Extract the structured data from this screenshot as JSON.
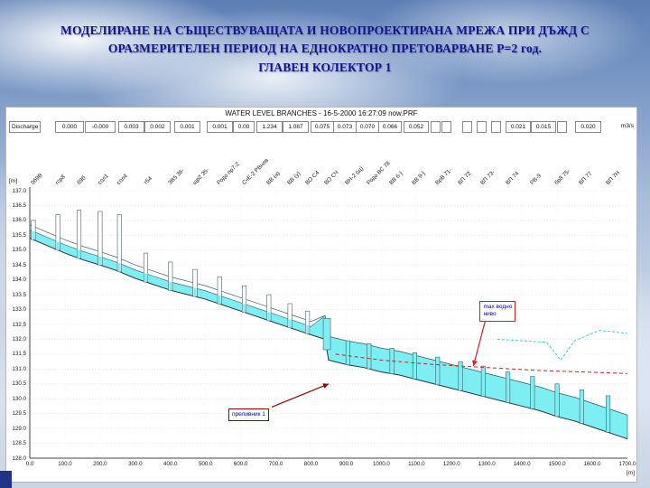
{
  "slide": {
    "title": {
      "line1": "МОДЕЛИРАНЕ НА СЪЩЕСТВУВАЩАТА И НОВОПРОЕКТИРАНА МРЕЖА ПРИ ДЪЖД С",
      "line2": "ОРАЗМЕРИТЕЛЕН ПЕРИОД НА ЕДНОКРАТНО ПРЕТОВАРВАНЕ Р=2 год.",
      "line3": "ГЛАВЕН КОЛЕКТОР 1"
    },
    "title_color": "#14148c"
  },
  "chart_data": {
    "type": "area",
    "title": "WATER LEVEL  BRANCHES - 16-5-2000 16:27:09 now.PRF",
    "x_unit": "[m]",
    "y_unit": "[m]",
    "xlim": [
      0,
      1700
    ],
    "ylim": [
      128.0,
      137.0
    ],
    "x_tick_step": 100,
    "y_tick_step": 0.5,
    "colors": {
      "water": "#7deef2",
      "outline": "#2b5f78",
      "grid": "#d9d9d9",
      "max_line": "#cc2222",
      "ground_line": "#2ec8d8"
    },
    "invert_profile": [
      [
        0,
        135.4
      ],
      [
        50,
        135.15
      ],
      [
        100,
        134.9
      ],
      [
        150,
        134.68
      ],
      [
        200,
        134.5
      ],
      [
        250,
        134.3
      ],
      [
        300,
        134.05
      ],
      [
        350,
        133.85
      ],
      [
        400,
        133.65
      ],
      [
        450,
        133.5
      ],
      [
        500,
        133.35
      ],
      [
        550,
        133.15
      ],
      [
        600,
        132.95
      ],
      [
        650,
        132.75
      ],
      [
        700,
        132.55
      ],
      [
        750,
        132.35
      ],
      [
        800,
        132.15
      ],
      [
        840,
        132.0
      ],
      [
        850,
        131.3
      ],
      [
        900,
        131.15
      ],
      [
        950,
        131.05
      ],
      [
        1000,
        130.9
      ],
      [
        1050,
        130.8
      ],
      [
        1100,
        130.65
      ],
      [
        1150,
        130.5
      ],
      [
        1200,
        130.35
      ],
      [
        1250,
        130.2
      ],
      [
        1300,
        130.05
      ],
      [
        1350,
        129.9
      ],
      [
        1400,
        129.75
      ],
      [
        1450,
        129.6
      ],
      [
        1500,
        129.4
      ],
      [
        1550,
        129.25
      ],
      [
        1600,
        129.05
      ],
      [
        1650,
        128.85
      ],
      [
        1700,
        128.65
      ]
    ],
    "pipe": {
      "break_x": 840,
      "upstream_diameter": 0.45,
      "downstream_diameter": 0.8
    },
    "water": {
      "upstream_depth": 0.28,
      "downstream_depth": 0.8
    },
    "max_level_line": [
      [
        870,
        131.5
      ],
      [
        1000,
        131.3
      ],
      [
        1150,
        131.15
      ],
      [
        1300,
        131.05
      ],
      [
        1450,
        130.95
      ],
      [
        1700,
        130.85
      ]
    ],
    "ground_line": [
      [
        1330,
        132.0
      ],
      [
        1400,
        131.95
      ],
      [
        1470,
        131.9
      ],
      [
        1510,
        131.3
      ],
      [
        1550,
        131.95
      ],
      [
        1620,
        132.3
      ],
      [
        1700,
        132.2
      ]
    ],
    "nodes": [
      {
        "x": 10,
        "top": 136.0,
        "label": "0б9В"
      },
      {
        "x": 80,
        "top": 136.2,
        "label": "гср8"
      },
      {
        "x": 140,
        "top": 136.35,
        "label": "б9б"
      },
      {
        "x": 200,
        "top": 136.3,
        "label": "сол1"
      },
      {
        "x": 255,
        "top": 136.2,
        "label": "сол4"
      },
      {
        "x": 330,
        "top": 134.9,
        "label": "т54"
      },
      {
        "x": 400,
        "top": 134.6,
        "label": "ЗВ5 36-"
      },
      {
        "x": 470,
        "top": 134.35,
        "label": "щр2 35-"
      },
      {
        "x": 540,
        "top": 134.1,
        "label": "Родо пр7-2"
      },
      {
        "x": 610,
        "top": 133.8,
        "label": "СчЕ-2 РВнов"
      },
      {
        "x": 680,
        "top": 133.5,
        "label": "ВВ (а)"
      },
      {
        "x": 740,
        "top": 133.2,
        "label": "ВВ (у)"
      },
      {
        "x": 790,
        "top": 132.95,
        "label": "ВО С4"
      },
      {
        "x": 845,
        "top": 132.7,
        "label": "ВО СЧ",
        "weir": true
      },
      {
        "x": 905,
        "top": 131.95,
        "label": "ВН-2 (щ)"
      },
      {
        "x": 965,
        "top": 131.85,
        "label": "Родо ВС 78"
      },
      {
        "x": 1030,
        "top": 131.7,
        "label": "ВВ 6-}"
      },
      {
        "x": 1095,
        "top": 131.55,
        "label": "ВВ 9-}"
      },
      {
        "x": 1160,
        "top": 131.4,
        "label": "ВрВ 71-"
      },
      {
        "x": 1225,
        "top": 131.25,
        "label": "ВП 72"
      },
      {
        "x": 1290,
        "top": 131.1,
        "label": "ВП 73-"
      },
      {
        "x": 1360,
        "top": 130.9,
        "label": "ВП 74"
      },
      {
        "x": 1430,
        "top": 130.75,
        "label": "РВ-9"
      },
      {
        "x": 1500,
        "top": 130.5,
        "label": "бр8 75-"
      },
      {
        "x": 1570,
        "top": 130.3,
        "label": "ВП 77"
      },
      {
        "x": 1645,
        "top": 130.1,
        "label": "ВП 7Н"
      }
    ],
    "discharge_row": {
      "label": "Discharge",
      "unit": "m3/s",
      "cells": [
        {
          "t": "0.000",
          "x": 54,
          "w": 30
        },
        {
          "t": "-0.000",
          "x": 87,
          "w": 32
        },
        {
          "t": "0.003",
          "x": 124,
          "w": 27
        },
        {
          "t": "0.002",
          "x": 153,
          "w": 27
        },
        {
          "t": "0.001",
          "x": 186,
          "w": 27
        },
        {
          "t": "0.001",
          "x": 222,
          "w": 27
        },
        {
          "t": "0.00",
          "x": 251,
          "w": 22
        },
        {
          "t": "1.234",
          "x": 277,
          "w": 27
        },
        {
          "t": "1.087",
          "x": 306,
          "w": 27
        },
        {
          "t": "0.075",
          "x": 337,
          "w": 24
        },
        {
          "t": "0.073",
          "x": 362,
          "w": 24
        },
        {
          "t": "0.070",
          "x": 387,
          "w": 24
        },
        {
          "t": "0.066",
          "x": 412,
          "w": 24
        },
        {
          "t": "0.052",
          "x": 440,
          "w": 26
        },
        {
          "t": "",
          "x": 470,
          "w": 9
        },
        {
          "t": "",
          "x": 482,
          "w": 9
        },
        {
          "t": "",
          "x": 505,
          "w": 9
        },
        {
          "t": "",
          "x": 521,
          "w": 9
        },
        {
          "t": "",
          "x": 537,
          "w": 9
        },
        {
          "t": "0.021",
          "x": 553,
          "w": 26
        },
        {
          "t": "0.015",
          "x": 581,
          "w": 26
        },
        {
          "t": "",
          "x": 610,
          "w": 9
        },
        {
          "t": "0.020",
          "x": 630,
          "w": 27
        }
      ]
    },
    "annotations": [
      {
        "text_lines": [
          "max водно",
          "ниво"
        ],
        "box": [
          1280,
          133.3
        ],
        "arrow": {
          "from": [
            1295,
            132.6
          ],
          "to": [
            1262,
            131.1
          ]
        },
        "color": "#cc2222"
      },
      {
        "text_lines": [
          "преливник 1"
        ],
        "box": [
          565,
          129.68
        ],
        "arrow": {
          "from": [
            688,
            129.72
          ],
          "to": [
            850,
            130.5
          ]
        },
        "color": "#990000"
      }
    ]
  }
}
